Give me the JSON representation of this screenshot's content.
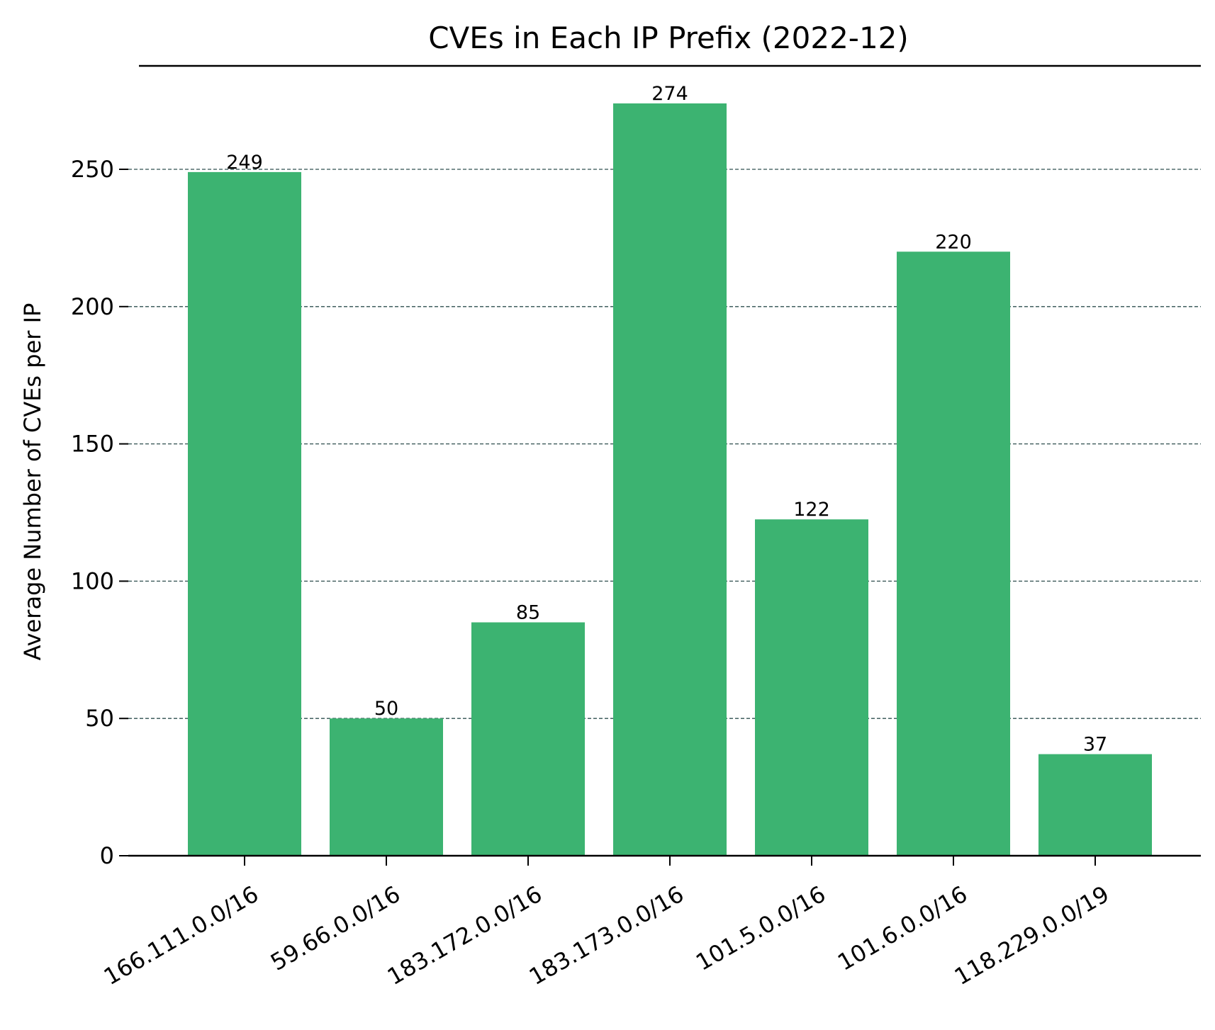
{
  "chart_data": {
    "type": "bar",
    "title": "CVEs in Each IP Prefix (2022-12)",
    "xlabel": "",
    "ylabel": "Average Number of CVEs per IP",
    "categories": [
      "166.111.0.0/16",
      "59.66.0.0/16",
      "183.172.0.0/16",
      "183.173.0.0/16",
      "101.5.0.0/16",
      "101.6.0.0/16",
      "118.229.0.0/19"
    ],
    "values": [
      249,
      50,
      85,
      274,
      122.5,
      220,
      37
    ],
    "data_labels": [
      "249",
      "50",
      "85",
      "274",
      "122",
      "220",
      "37"
    ],
    "yticks": [
      0,
      50,
      100,
      150,
      200,
      250
    ],
    "ylim": [
      0,
      288
    ],
    "grid": "horizontal dashed",
    "bar_color": "#3cb371",
    "grid_color": "#2f4f4f"
  }
}
